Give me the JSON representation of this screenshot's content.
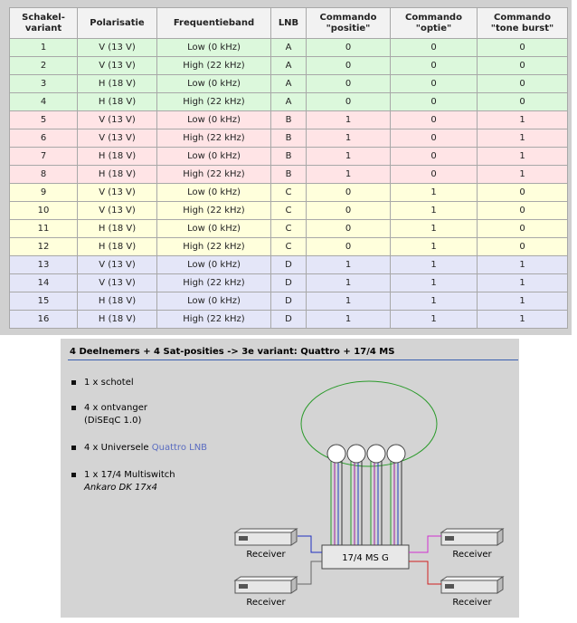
{
  "table": {
    "header": [
      "Schakel-\nvariant",
      "Polarisatie",
      "Frequentieband",
      "LNB",
      "Commando\n\"positie\"",
      "Commando\n\"optie\"",
      "Commando\n\"tone burst\""
    ],
    "rows": [
      [
        "1",
        "V (13 V)",
        "Low (0 kHz)",
        "A",
        "0",
        "0",
        "0"
      ],
      [
        "2",
        "V (13 V)",
        "High (22 kHz)",
        "A",
        "0",
        "0",
        "0"
      ],
      [
        "3",
        "H (18 V)",
        "Low (0 kHz)",
        "A",
        "0",
        "0",
        "0"
      ],
      [
        "4",
        "H (18 V)",
        "High (22 kHz)",
        "A",
        "0",
        "0",
        "0"
      ],
      [
        "5",
        "V (13 V)",
        "Low (0 kHz)",
        "B",
        "1",
        "0",
        "1"
      ],
      [
        "6",
        "V (13 V)",
        "High (22 kHz)",
        "B",
        "1",
        "0",
        "1"
      ],
      [
        "7",
        "H (18 V)",
        "Low (0 kHz)",
        "B",
        "1",
        "0",
        "1"
      ],
      [
        "8",
        "H (18 V)",
        "High (22 kHz)",
        "B",
        "1",
        "0",
        "1"
      ],
      [
        "9",
        "V (13 V)",
        "Low (0 kHz)",
        "C",
        "0",
        "1",
        "0"
      ],
      [
        "10",
        "V (13 V)",
        "High (22 kHz)",
        "C",
        "0",
        "1",
        "0"
      ],
      [
        "11",
        "H (18 V)",
        "Low (0 kHz)",
        "C",
        "0",
        "1",
        "0"
      ],
      [
        "12",
        "H (18 V)",
        "High (22 kHz)",
        "C",
        "0",
        "1",
        "0"
      ],
      [
        "13",
        "V (13 V)",
        "Low (0 kHz)",
        "D",
        "1",
        "1",
        "1"
      ],
      [
        "14",
        "V (13 V)",
        "High (22 kHz)",
        "D",
        "1",
        "1",
        "1"
      ],
      [
        "15",
        "H (18 V)",
        "Low (0 kHz)",
        "D",
        "1",
        "1",
        "1"
      ],
      [
        "16",
        "H (18 V)",
        "High (22 kHz)",
        "D",
        "1",
        "1",
        "1"
      ]
    ],
    "lnb_colors": {
      "A": "#dcf8dc",
      "B": "#ffe4e6",
      "C": "#ffffdc",
      "D": "#e4e6f8"
    }
  },
  "panel": {
    "title": "4 Deelnemers + 4 Sat-posities -> 3e variant: Quattro + 17/4 MS",
    "items": [
      {
        "text": "1 x schotel"
      },
      {
        "text": "4 x ontvanger",
        "sub": "(DiSEqC 1.0)"
      },
      {
        "text": "4 x Universele",
        "link": "Quattro LNB"
      },
      {
        "text": "1 x 17/4 Multiswitch",
        "sub_italic": "Ankaro DK 17x4"
      }
    ],
    "switch": "17/4 MS G",
    "receivers": [
      "Receiver",
      "Receiver",
      "Receiver",
      "Receiver"
    ]
  }
}
